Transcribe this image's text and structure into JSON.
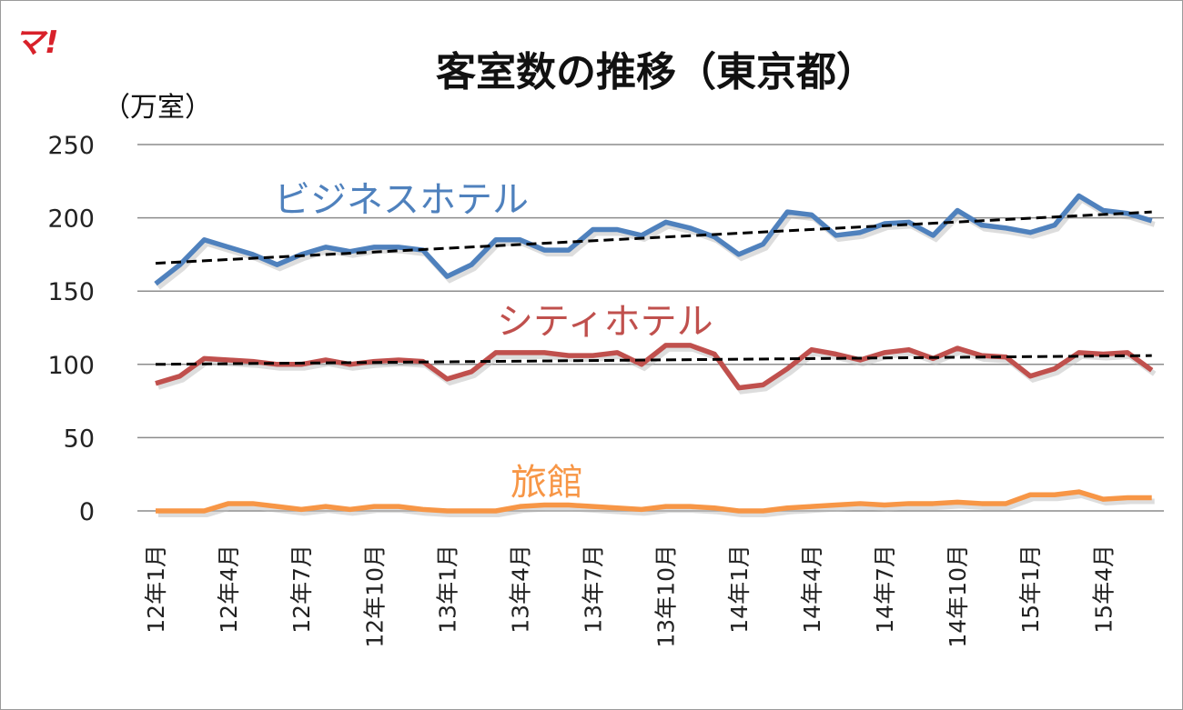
{
  "logo_text": "マ!",
  "chart_data": {
    "type": "line",
    "title": "客室数の推移（東京都）",
    "ylabel": "（万室）",
    "ylim": [
      0,
      250
    ],
    "yticks": [
      0,
      50,
      100,
      150,
      200,
      250
    ],
    "grid": true,
    "x_tick_labels": [
      "12年1月",
      "12年4月",
      "12年7月",
      "12年10月",
      "13年1月",
      "13年4月",
      "13年7月",
      "13年10月",
      "14年1月",
      "14年4月",
      "14年7月",
      "14年10月",
      "15年1月",
      "15年4月"
    ],
    "x_months": 42,
    "series": [
      {
        "name": "ビジネスホテル",
        "color": "#4f81bd",
        "values": [
          155,
          168,
          185,
          180,
          175,
          168,
          175,
          180,
          177,
          180,
          180,
          178,
          160,
          168,
          185,
          185,
          178,
          178,
          192,
          192,
          188,
          197,
          193,
          187,
          175,
          182,
          204,
          202,
          188,
          190,
          196,
          197,
          188,
          205,
          195,
          193,
          190,
          195,
          215,
          205,
          203,
          198
        ],
        "trend": [
          169,
          204
        ]
      },
      {
        "name": "シティホテル",
        "color": "#c0504d",
        "values": [
          87,
          92,
          104,
          103,
          102,
          100,
          100,
          103,
          100,
          102,
          103,
          102,
          90,
          95,
          108,
          108,
          108,
          106,
          106,
          108,
          100,
          113,
          113,
          107,
          84,
          86,
          97,
          110,
          107,
          103,
          108,
          110,
          104,
          111,
          106,
          105,
          92,
          97,
          108,
          107,
          108,
          96
        ],
        "trend": [
          100,
          106
        ]
      },
      {
        "name": "旅館",
        "color": "#f79646",
        "values": [
          0,
          0,
          0,
          5,
          5,
          3,
          1,
          3,
          1,
          3,
          3,
          1,
          0,
          0,
          0,
          3,
          4,
          4,
          3,
          2,
          1,
          3,
          3,
          2,
          0,
          0,
          2,
          3,
          4,
          5,
          4,
          5,
          5,
          6,
          5,
          5,
          11,
          11,
          13,
          8,
          9,
          9
        ]
      }
    ]
  }
}
